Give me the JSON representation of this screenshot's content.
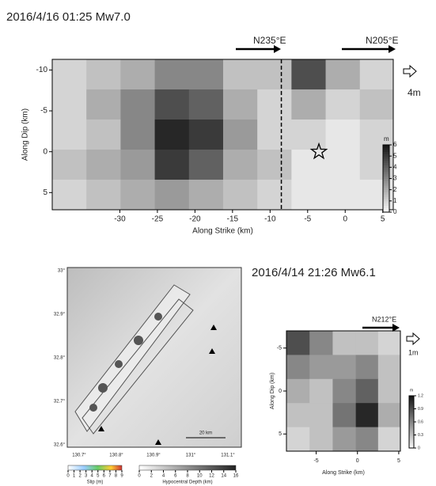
{
  "chart_data": [
    {
      "type": "heatmap",
      "title": "2016/4/16 01:25 Mw7.0",
      "xlabel": "Along Strike (km)",
      "ylabel": "Along Dip (km)",
      "xlim": [
        -39,
        6.4
      ],
      "ylim": [
        -11.3,
        7.1
      ],
      "xticks": [
        -30,
        -25,
        -20,
        -15,
        -10,
        -5,
        0,
        5
      ],
      "yticks": [
        -10,
        -5,
        0,
        5
      ],
      "x": [
        -36.7,
        -32.2,
        -27.6,
        -23.1,
        -18.5,
        -14,
        -9.4,
        -4.9,
        -0.3,
        4.2
      ],
      "y": [
        -9.46,
        -5.78,
        -2.1,
        1.58,
        5.26
      ],
      "z": [
        [
          1,
          1.5,
          2,
          3,
          3,
          1.5,
          1.5,
          4.5,
          2,
          1
        ],
        [
          1,
          2,
          3,
          4.5,
          4,
          2,
          1,
          2,
          1,
          1.5
        ],
        [
          1,
          1.5,
          3,
          5.5,
          5,
          2.5,
          1,
          1,
          0.5,
          1
        ],
        [
          1.5,
          2,
          2.5,
          5,
          4,
          2,
          1.5,
          0.5,
          0.5,
          1
        ],
        [
          1,
          1.5,
          2,
          2.5,
          2,
          1.5,
          1,
          0.5,
          0.5,
          0.5
        ]
      ],
      "clim": [
        0,
        6
      ],
      "colorbar_label": "m",
      "colorbar_ticks": [
        0,
        1,
        2,
        3,
        4,
        5,
        6
      ],
      "strike_labels": [
        "N235°E",
        "N205°E"
      ],
      "vector_scale": "4m",
      "hypocenter": [
        -3.5,
        0
      ],
      "fault_segment_boundary": -8.5
    },
    {
      "type": "heatmap",
      "title": "2016/4/14  21:26 Mw6.1",
      "xlabel": "Along Strike (km)",
      "ylabel": "Along Dip (km)",
      "xlim": [
        -8.6,
        5.2
      ],
      "ylim": [
        -7,
        7
      ],
      "xticks": [
        -5,
        0,
        5
      ],
      "yticks": [
        -5,
        0,
        5
      ],
      "x": [
        -7.2,
        -4.4,
        -1.6,
        1.2,
        3.8
      ],
      "y": [
        -5.6,
        -2.8,
        0,
        2.8,
        5.6
      ],
      "z": [
        [
          0.9,
          0.6,
          0.3,
          0.3,
          0.2
        ],
        [
          0.6,
          0.5,
          0.5,
          0.6,
          0.3
        ],
        [
          0.4,
          0.3,
          0.6,
          0.8,
          0.3
        ],
        [
          0.3,
          0.3,
          0.7,
          1.1,
          0.4
        ],
        [
          0.2,
          0.3,
          0.5,
          0.6,
          0.2
        ]
      ],
      "clim": [
        0,
        1.2
      ],
      "colorbar_label": "m",
      "colorbar_ticks": [
        0,
        0.3,
        0.6,
        0.9,
        1.2
      ],
      "strike_labels": [
        "N212°E"
      ],
      "vector_scale": "1m"
    }
  ],
  "map": {
    "lon_ticks": [
      "130.7°",
      "130.8°",
      "130.9°",
      "131°",
      "131.1°"
    ],
    "lat_ticks": [
      "33°",
      "32.9°",
      "32.8°",
      "32.7°",
      "32.6°"
    ],
    "scale_bar": "20 km",
    "slip_label": "Slip (m)",
    "slip_ticks": [
      0,
      1,
      2,
      3,
      4,
      5,
      6,
      7,
      8,
      9
    ],
    "depth_label": "Hypocentral Depth (km)",
    "depth_ticks": [
      0,
      2,
      4,
      6,
      8,
      10,
      12,
      14,
      16
    ]
  }
}
